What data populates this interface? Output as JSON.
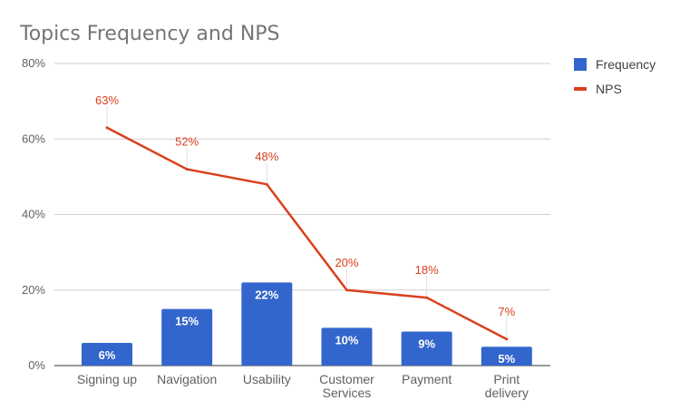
{
  "chart_data": {
    "type": "bar",
    "title": "Topics Frequency and NPS",
    "categories": [
      [
        "Signing up"
      ],
      [
        "Navigation"
      ],
      [
        "Usability"
      ],
      [
        "Customer",
        "Services"
      ],
      [
        "Payment"
      ],
      [
        "Print",
        "delivery"
      ]
    ],
    "series": [
      {
        "name": "Frequency",
        "type": "bar",
        "values": [
          6,
          15,
          22,
          10,
          9,
          5
        ],
        "labels": [
          "6%",
          "15%",
          "22%",
          "10%",
          "9%",
          "5%"
        ],
        "color": "#3366cc"
      },
      {
        "name": "NPS",
        "type": "line",
        "values": [
          63,
          52,
          48,
          20,
          18,
          7
        ],
        "labels": [
          "63%",
          "52%",
          "48%",
          "20%",
          "18%",
          "7%"
        ],
        "color": "#d8411c"
      }
    ],
    "ylim": [
      0,
      80
    ],
    "yticks": [
      0,
      20,
      40,
      60,
      80
    ],
    "ytick_labels": [
      "0%",
      "20%",
      "40%",
      "60%",
      "80%"
    ],
    "xlabel": "",
    "ylabel": "",
    "grid": true,
    "legend": "right"
  }
}
